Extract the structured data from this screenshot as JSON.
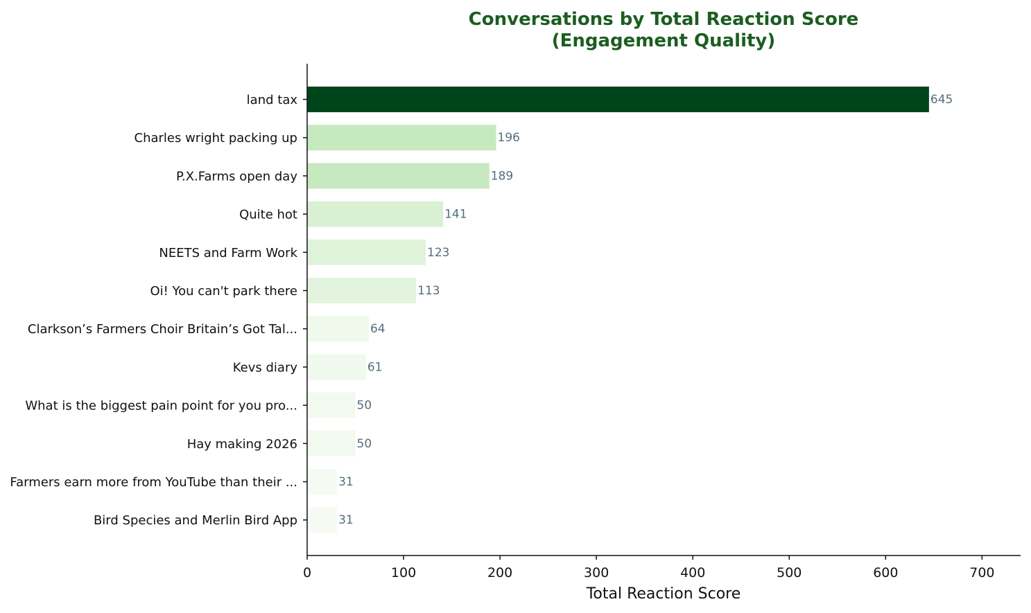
{
  "chart_data": {
    "type": "bar",
    "orientation": "horizontal",
    "title_lines": [
      "Conversations by Total Reaction Score",
      "(Engagement Quality)"
    ],
    "xlabel": "Total Reaction Score",
    "ylabel": "",
    "xlim": [
      0,
      740
    ],
    "xticks": [
      0,
      100,
      200,
      300,
      400,
      500,
      600,
      700
    ],
    "grid": false,
    "legend": "none",
    "categories": [
      "land tax",
      "Charles wright packing up",
      "P.X.Farms open day",
      "Quite hot",
      "NEETS and Farm Work",
      "Oi! You can't park there",
      "Clarkson’s Farmers Choir Britain’s Got Tal...",
      "Kevs diary",
      "What is the biggest pain point for you pro...",
      "Hay making 2026",
      "Farmers earn more from YouTube than their ...",
      "Bird Species and Merlin Bird App"
    ],
    "values": [
      645,
      196,
      189,
      141,
      123,
      113,
      64,
      61,
      50,
      50,
      31,
      31
    ],
    "colors": [
      "#00441b",
      "#c7e9c0",
      "#c7e9c0",
      "#d9f0d3",
      "#dff3da",
      "#e2f4de",
      "#eff9ec",
      "#f0f9ed",
      "#f2faef",
      "#f2faef",
      "#f5fbf3",
      "#f5fbf3"
    ],
    "value_label_color": "#546e7a",
    "title_color": "#1b5e20"
  }
}
